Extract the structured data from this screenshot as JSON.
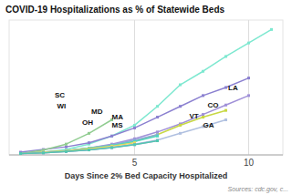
{
  "chart_data": {
    "type": "line",
    "title": "COVID-19 Hospitalizations as % of Statewide Beds",
    "xlabel": "Days Since 2% Bed Capacity Hospitalized",
    "source": "Sources: cdc.gov, c...",
    "xlim": [
      -0.5,
      11.5
    ],
    "ylim": [
      0,
      1.0
    ],
    "xticks": [
      5,
      10
    ],
    "tick_labels": "x",
    "grid": true,
    "marker": "square",
    "series": [
      {
        "color": "#7de8d0",
        "x": [
          0,
          1,
          2,
          3,
          4,
          5,
          6,
          7,
          8,
          9,
          10,
          11
        ],
        "values": [
          0.01,
          0.02,
          0.04,
          0.08,
          0.14,
          0.22,
          0.36,
          0.52,
          0.62,
          0.73,
          0.83,
          0.93
        ]
      },
      {
        "color": "#8b80d0",
        "x": [
          0,
          1,
          2,
          3,
          4,
          5,
          6,
          7,
          8,
          9,
          10
        ],
        "values": [
          0.02,
          0.04,
          0.06,
          0.09,
          0.14,
          0.2,
          0.28,
          0.36,
          0.44,
          0.5,
          0.57
        ]
      },
      {
        "color": "#a090d8",
        "x": [
          0,
          1,
          2,
          3,
          4,
          5,
          6,
          7,
          8,
          9,
          10
        ],
        "values": [
          0.01,
          0.02,
          0.03,
          0.05,
          0.08,
          0.12,
          0.17,
          0.23,
          0.3,
          0.37,
          0.44
        ]
      },
      {
        "color": "#c8d844",
        "x": [
          0,
          1,
          2,
          3,
          4,
          5,
          6,
          7,
          8,
          9
        ],
        "values": [
          0.01,
          0.02,
          0.03,
          0.05,
          0.07,
          0.1,
          0.15,
          0.22,
          0.28,
          0.33
        ]
      },
      {
        "color": "#b0c0e0",
        "x": [
          0,
          1,
          2,
          3,
          4,
          5,
          6,
          7,
          8,
          9
        ],
        "values": [
          0.01,
          0.015,
          0.025,
          0.038,
          0.056,
          0.08,
          0.11,
          0.16,
          0.21,
          0.26
        ]
      },
      {
        "color": "#90cc90",
        "x": [
          0,
          1,
          2,
          3,
          4
        ],
        "values": [
          0.01,
          0.035,
          0.08,
          0.16,
          0.26
        ]
      },
      {
        "color": "#90a8d8",
        "x": [
          0,
          1,
          2,
          3,
          4,
          5,
          6
        ],
        "values": [
          0.01,
          0.02,
          0.03,
          0.05,
          0.075,
          0.11,
          0.15
        ]
      },
      {
        "color": "#50d4c0",
        "x": [
          0,
          1,
          2,
          3,
          4,
          5,
          6
        ],
        "values": [
          0.01,
          0.02,
          0.03,
          0.05,
          0.07,
          0.1,
          0.14
        ]
      },
      {
        "color": "#e8d860",
        "x": [
          0,
          1,
          2,
          3,
          4,
          5
        ],
        "values": [
          0.01,
          0.02,
          0.03,
          0.045,
          0.065,
          0.09
        ]
      },
      {
        "color": "#b898d8",
        "x": [
          0,
          1,
          2,
          3,
          4,
          5,
          6
        ],
        "values": [
          0.01,
          0.015,
          0.025,
          0.037,
          0.054,
          0.076,
          0.105
        ]
      },
      {
        "color": "#50c8b0",
        "x": [
          0,
          1,
          2,
          3,
          4,
          5,
          6
        ],
        "values": [
          0.01,
          0.015,
          0.025,
          0.037,
          0.054,
          0.076,
          0.105
        ]
      }
    ],
    "annotations": [
      {
        "text": "LA",
        "x": 9.1,
        "y": 0.5
      },
      {
        "text": "CO",
        "x": 8.2,
        "y": 0.37
      },
      {
        "text": "VT",
        "x": 7.4,
        "y": 0.29
      },
      {
        "text": "GA",
        "x": 8.0,
        "y": 0.22
      },
      {
        "text": "SC",
        "x": 1.5,
        "y": 0.44
      },
      {
        "text": "MD",
        "x": 3.1,
        "y": 0.32
      },
      {
        "text": "MA",
        "x": 4.0,
        "y": 0.28
      },
      {
        "text": "WI",
        "x": 1.6,
        "y": 0.36
      },
      {
        "text": "OH",
        "x": 2.7,
        "y": 0.24
      },
      {
        "text": "MS",
        "x": 4.0,
        "y": 0.22
      }
    ]
  }
}
